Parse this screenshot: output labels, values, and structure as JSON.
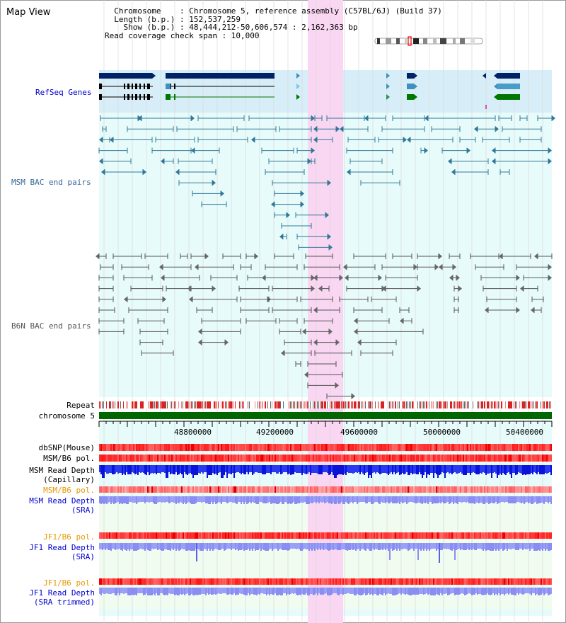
{
  "title": "Map View",
  "info": {
    "line1": "  Chromosome    : Chromosome 5, reference assembly (C57BL/6J) (Build 37)",
    "line2": "  Length (b.p.) : 152,537,259",
    "line3": "    Show (b.p.) : 48,444,212-50,606,574 : 2,162,363 bp",
    "line4": "Read coverage check span : 10,000"
  },
  "tracks": {
    "refseq": {
      "label": "RefSeq Genes",
      "color": "#0000cc"
    },
    "msm_bac": {
      "label": "MSM BAC end pairs",
      "color": "#336699"
    },
    "b6n_bac": {
      "label": "B6N BAC end pairs",
      "color": "#555555"
    },
    "repeat": {
      "label": "Repeat"
    },
    "chromosome": {
      "label": "chromosome 5"
    },
    "dbsnp": {
      "label": "dbSNP(Mouse)"
    },
    "msm_b6_pol_1": {
      "label": "MSM/B6 pol."
    },
    "msm_depth_cap_1": {
      "label": "MSM Read Depth"
    },
    "msm_depth_cap_2": {
      "label": "(Capillary)"
    },
    "msm_b6_pol_2": {
      "label": "MSM/B6 pol.",
      "color": "#e69900"
    },
    "msm_depth_sra_1": {
      "label": "MSM Read Depth",
      "color": "#0000cc"
    },
    "msm_depth_sra_2": {
      "label": "(SRA)",
      "color": "#0000cc"
    },
    "jf1_pol_1": {
      "label": "JF1/B6 pol.",
      "color": "#e69900"
    },
    "jf1_depth_sra_1": {
      "label": "JF1 Read Depth",
      "color": "#0000cc"
    },
    "jf1_depth_sra_2": {
      "label": "(SRA)",
      "color": "#0000cc"
    },
    "jf1_pol_2": {
      "label": "JF1/B6 pol.",
      "color": "#e69900"
    },
    "jf1_depth_trim_1": {
      "label": "JF1 Read Depth",
      "color": "#0000cc"
    },
    "jf1_depth_trim_2": {
      "label": "(SRA trimmed)",
      "color": "#0000cc"
    }
  },
  "axis": {
    "ticks": [
      "48800000",
      "49200000",
      "49600000",
      "50000000",
      "50400000"
    ]
  },
  "colors": {
    "highlight": "#f9d6f1",
    "refseq_bg": "#d7eef8",
    "lane_bg": "#e8fbfb",
    "grid": "#d8d8d8",
    "chromosome_bar": "#006600",
    "refseq_dark": "#002266",
    "refseq_light": "#3f8fbf",
    "refseq_green": "#007700"
  }
}
